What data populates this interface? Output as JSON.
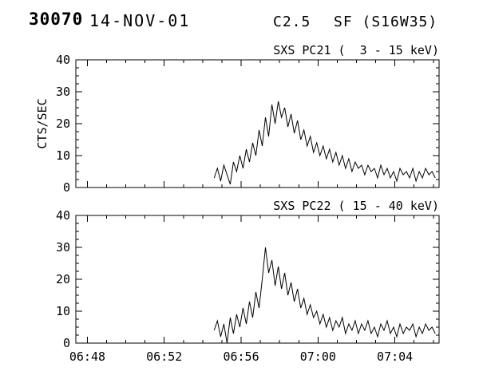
{
  "header": {
    "event_number": "30070",
    "date": "14-NOV-01",
    "goes_class": "C2.5",
    "flare_type_location": "SF (S16W35)"
  },
  "chart_data": [
    {
      "id": "pc21",
      "type": "line",
      "title": "SXS PC21 (  3 - 15 keV)",
      "xlabel": "",
      "ylabel": "CTS/SEC",
      "ylim": [
        0,
        40
      ],
      "yticks": [
        0,
        10,
        20,
        30,
        40
      ],
      "y_minor_step": 2.5,
      "x_axis": {
        "xlim_minutes_after_0648": [
          -0.6,
          18.3
        ],
        "major_tick_minutes": [
          0,
          4,
          8,
          12,
          16
        ],
        "major_tick_labels": [
          "06:48",
          "06:52",
          "06:56",
          "07:00",
          "07:04"
        ],
        "minor_tick_step_minutes": 1,
        "show_labels": false
      },
      "series": {
        "name": "SXS PC21",
        "t_start_minutes_after_0648": 6.6,
        "t_step_seconds": 10,
        "counts_per_sec": [
          3,
          6,
          2,
          7,
          4,
          1,
          8,
          5,
          10,
          6,
          12,
          8,
          14,
          10,
          18,
          13,
          22,
          16,
          26,
          20,
          27,
          22,
          25,
          19,
          23,
          17,
          21,
          15,
          18,
          13,
          16,
          11,
          14,
          10,
          13,
          9,
          12,
          8,
          11,
          7,
          10,
          6,
          9,
          5,
          8,
          6,
          7,
          4,
          7,
          5,
          6,
          3,
          7,
          4,
          6,
          3,
          5,
          2,
          6,
          4,
          5,
          3,
          6,
          2,
          5,
          3,
          6,
          4,
          5,
          3
        ]
      }
    },
    {
      "id": "pc22",
      "type": "line",
      "title": "SXS PC22 ( 15 - 40 keV)",
      "xlabel": "",
      "ylabel": "",
      "ylim": [
        0,
        40
      ],
      "yticks": [
        0,
        10,
        20,
        30,
        40
      ],
      "y_minor_step": 2.5,
      "x_axis": {
        "xlim_minutes_after_0648": [
          -0.6,
          18.3
        ],
        "major_tick_minutes": [
          0,
          4,
          8,
          12,
          16
        ],
        "major_tick_labels": [
          "06:48",
          "06:52",
          "06:56",
          "07:00",
          "07:04"
        ],
        "minor_tick_step_minutes": 1,
        "show_labels": true
      },
      "series": {
        "name": "SXS PC22",
        "t_start_minutes_after_0648": 6.6,
        "t_step_seconds": 10,
        "counts_per_sec": [
          4,
          7,
          2,
          6,
          0,
          8,
          3,
          9,
          5,
          11,
          6,
          13,
          8,
          16,
          11,
          20,
          30,
          22,
          26,
          18,
          24,
          17,
          22,
          15,
          19,
          13,
          17,
          11,
          14,
          9,
          12,
          8,
          10,
          6,
          9,
          5,
          8,
          4,
          7,
          5,
          8,
          3,
          6,
          4,
          7,
          3,
          6,
          4,
          7,
          3,
          5,
          2,
          6,
          4,
          7,
          3,
          5,
          2,
          6,
          3,
          5,
          4,
          6,
          2,
          5,
          3,
          6,
          4,
          5,
          3
        ]
      }
    }
  ]
}
